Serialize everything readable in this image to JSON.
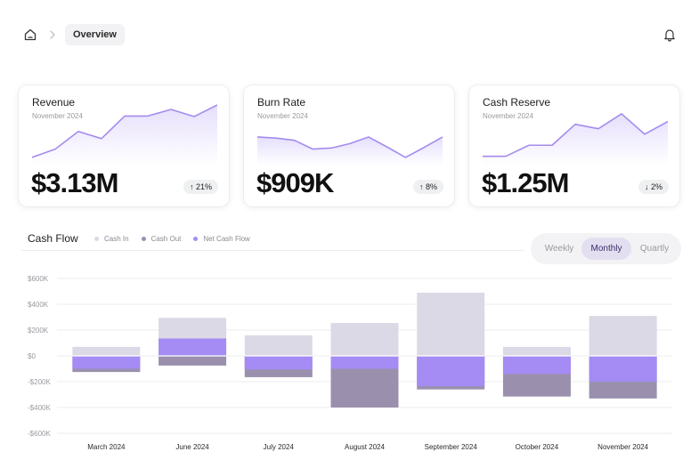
{
  "breadcrumb": {
    "current": "Overview"
  },
  "cards": [
    {
      "title": "Revenue",
      "subtitle": "November 2024",
      "value": "$3.13M",
      "change": "21%",
      "direction": "up",
      "trend": [
        0.05,
        0.2,
        0.52,
        0.39,
        0.8,
        0.8,
        0.92,
        0.79,
        1.0
      ]
    },
    {
      "title": "Burn Rate",
      "subtitle": "November 2024",
      "value": "$909K",
      "change": "8%",
      "direction": "up",
      "trend": [
        0.42,
        0.4,
        0.36,
        0.2,
        0.22,
        0.3,
        0.42,
        0.24,
        0.05,
        0.23,
        0.42
      ]
    },
    {
      "title": "Cash Reserve",
      "subtitle": "November 2024",
      "value": "$1.25M",
      "change": "2%",
      "direction": "down",
      "trend": [
        0.07,
        0.07,
        0.27,
        0.27,
        0.65,
        0.57,
        0.84,
        0.47,
        0.7
      ]
    }
  ],
  "cashflow": {
    "title": "Cash Flow",
    "legend": [
      {
        "label": "Cash In",
        "color": "#dcd9e6"
      },
      {
        "label": "Cash Out",
        "color": "#9a90ad"
      },
      {
        "label": "Net Cash Flow",
        "color": "#a48cf4"
      }
    ],
    "periods": [
      "Weekly",
      "Monthly",
      "Quartly"
    ],
    "active_period": "Monthly"
  },
  "colors": {
    "accent": "#a48cf4",
    "cash_in": "#dcd9e6",
    "cash_out": "#9a90ad",
    "line": "#a58bee"
  },
  "chart_data": {
    "type": "bar",
    "categories": [
      "March 2024",
      "June 2024",
      "July 2024",
      "August 2024",
      "September 2024",
      "October 2024",
      "November 2024"
    ],
    "series": [
      {
        "name": "Cash In",
        "values": [
          70,
          295,
          160,
          255,
          490,
          70,
          310
        ]
      },
      {
        "name": "Cash Out",
        "values": [
          -125,
          -75,
          -165,
          -400,
          -260,
          -315,
          -330
        ]
      },
      {
        "name": "Net Cash Flow",
        "values": [
          -100,
          135,
          -105,
          -100,
          -235,
          -140,
          -200
        ]
      }
    ],
    "y_ticks": [
      "$600K",
      "$400K",
      "$200K",
      "$0",
      "-$200K",
      "-$400K",
      "-$600K"
    ],
    "ylim": [
      -600,
      600
    ],
    "grid": true
  }
}
